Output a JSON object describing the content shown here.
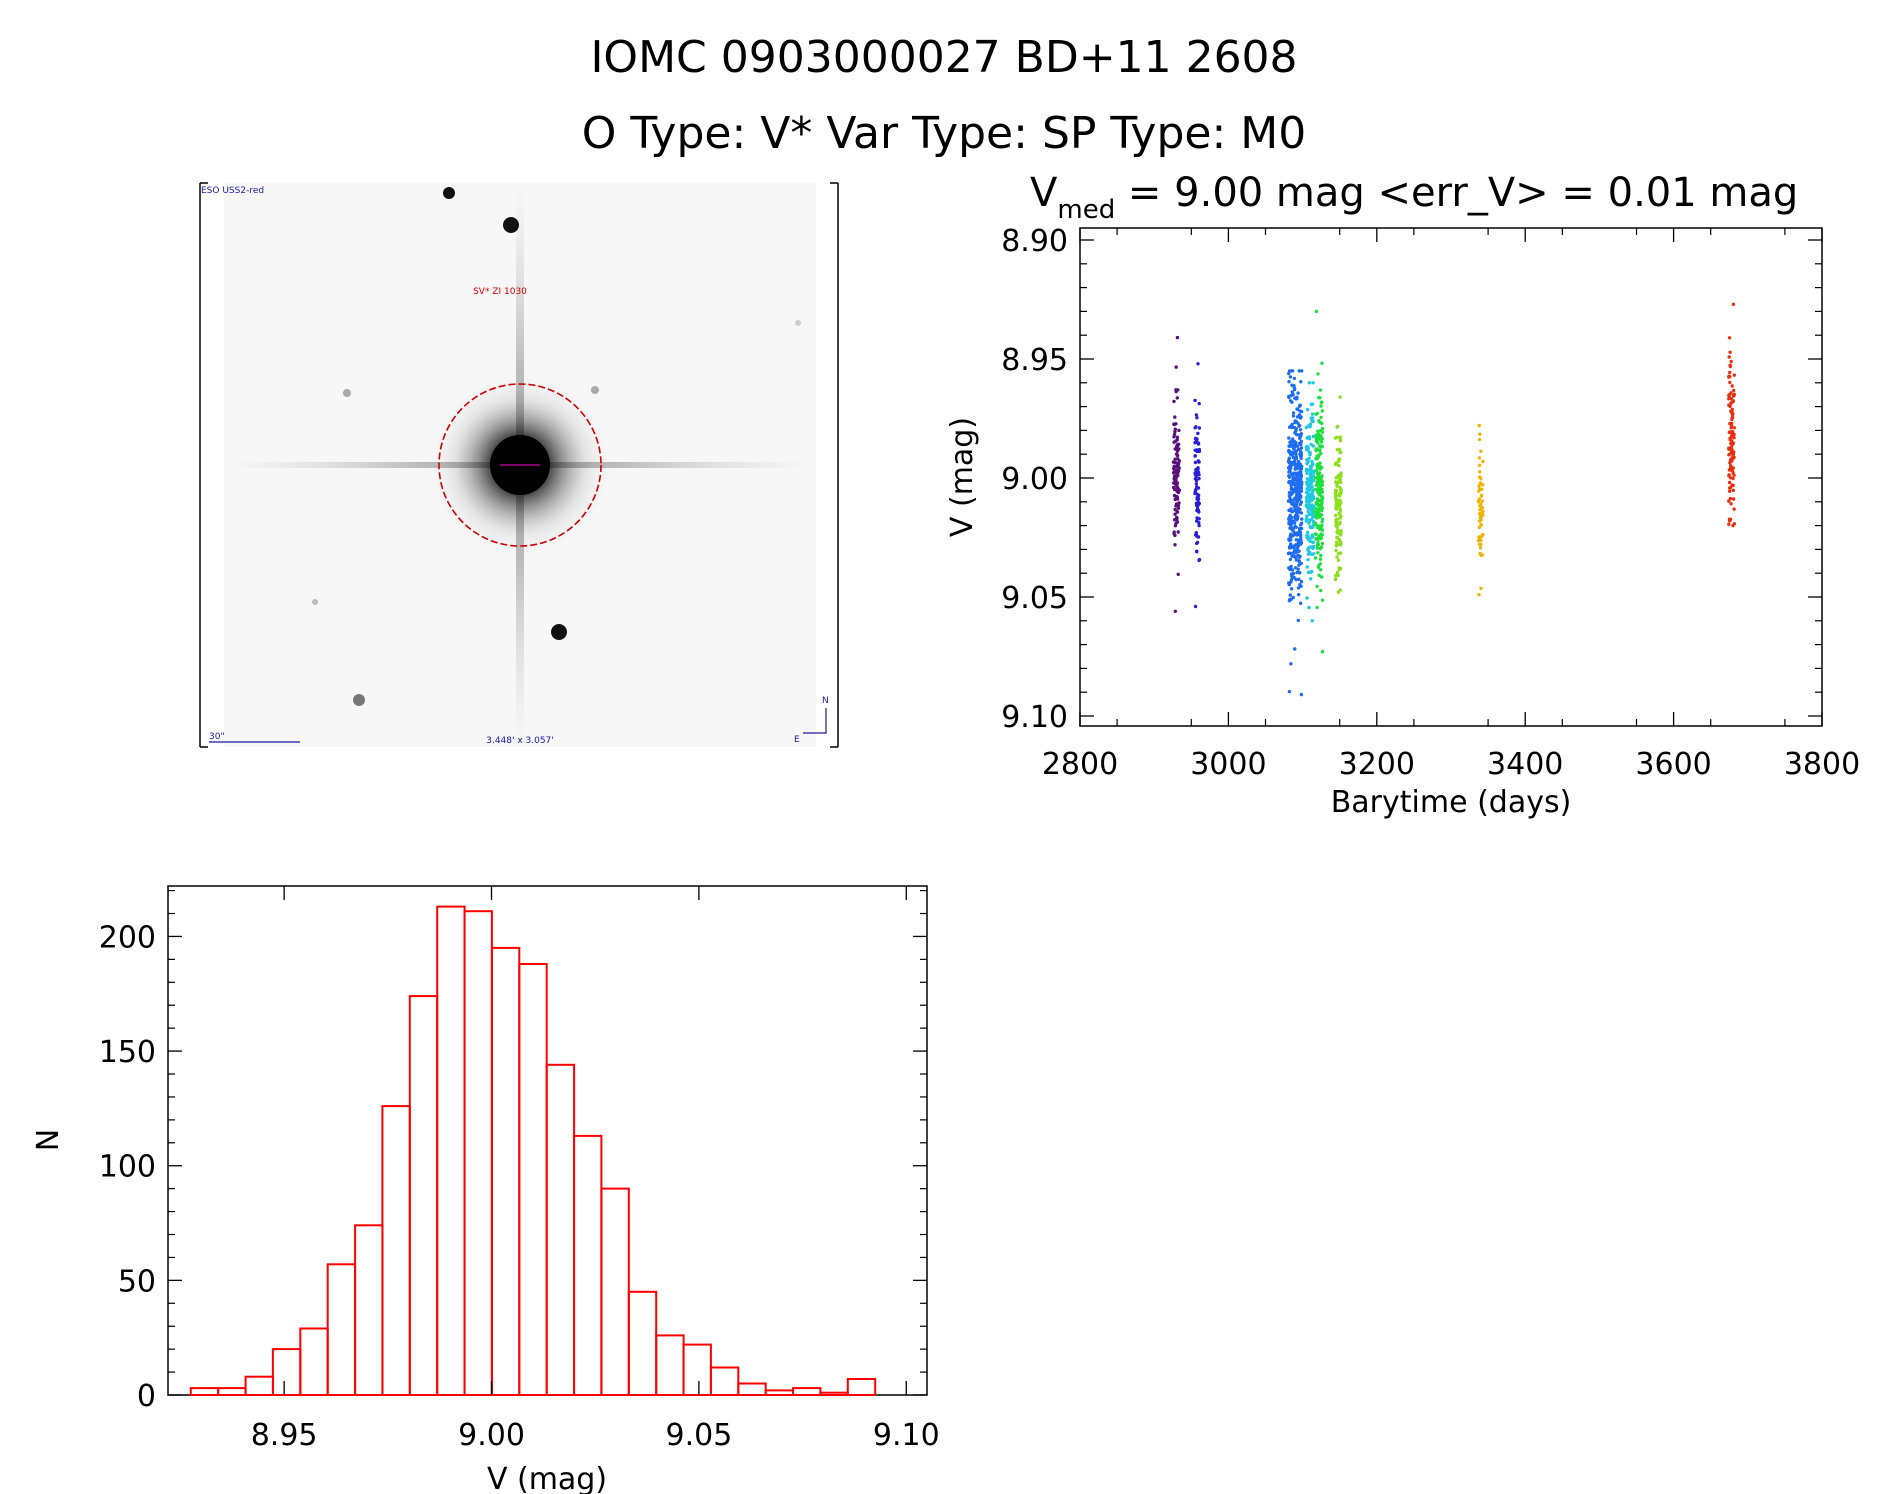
{
  "header": {
    "line1": "IOMC 0903000027    BD+11  2608",
    "line2": "O Type: V*  Var Type:    SP Type: M0"
  },
  "sky_image": {
    "survey_label": "ESO USS2-red",
    "target_label": "SV* ZI 1030",
    "scale_label": "30\"",
    "fov_label": "3.448' x 3.057'",
    "north_label": "N",
    "east_label": "E",
    "label_color": "#1a1aa0",
    "target_color": "#cc0000"
  },
  "chart_data": [
    {
      "type": "scatter",
      "title_prefix": "V",
      "title_subscript": "med",
      "title_rest": " = 9.00 mag <err_V> = 0.01 mag",
      "xlabel": "Barytime (days)",
      "ylabel": "V (mag)",
      "xlim": [
        2800,
        3800
      ],
      "ylim": [
        9.1,
        8.9
      ],
      "xticks": [
        "2800",
        "3000",
        "3200",
        "3400",
        "3600",
        "3800"
      ],
      "yticks": [
        "8.90",
        "8.95",
        "9.00",
        "9.05",
        "9.10"
      ],
      "clusters": [
        {
          "x": 2930,
          "xspread": 4,
          "ymin": 8.941,
          "ymax": 9.056,
          "center": 8.998,
          "sd": 0.017,
          "n": 110,
          "color": "#5a0f7a"
        },
        {
          "x": 2958,
          "xspread": 3,
          "ymin": 8.952,
          "ymax": 9.054,
          "center": 9.002,
          "sd": 0.015,
          "n": 90,
          "color": "#2a1fd8"
        },
        {
          "x": 3090,
          "xspread": 9,
          "ymin": 8.955,
          "ymax": 9.091,
          "center": 9.006,
          "sd": 0.022,
          "n": 420,
          "color": "#1e6cf0"
        },
        {
          "x": 3110,
          "xspread": 5,
          "ymin": 8.96,
          "ymax": 9.06,
          "center": 9.007,
          "sd": 0.017,
          "n": 180,
          "color": "#1ec8e0"
        },
        {
          "x": 3122,
          "xspread": 5,
          "ymin": 8.93,
          "ymax": 9.073,
          "center": 9.006,
          "sd": 0.019,
          "n": 200,
          "color": "#1ee03c"
        },
        {
          "x": 3148,
          "xspread": 4,
          "ymin": 8.966,
          "ymax": 9.048,
          "center": 9.012,
          "sd": 0.015,
          "n": 130,
          "color": "#8ee01e"
        },
        {
          "x": 3340,
          "xspread": 3,
          "ymin": 8.978,
          "ymax": 9.049,
          "center": 9.013,
          "sd": 0.014,
          "n": 60,
          "color": "#f0b400"
        },
        {
          "x": 3678,
          "xspread": 4,
          "ymin": 8.927,
          "ymax": 9.02,
          "center": 8.983,
          "sd": 0.016,
          "n": 120,
          "color": "#e83010"
        }
      ]
    },
    {
      "type": "bar",
      "subtype": "histogram",
      "xlabel": "V (mag)",
      "ylabel": "N",
      "xlim": [
        8.922,
        9.105
      ],
      "ylim": [
        0,
        222
      ],
      "xticks": [
        "8.95",
        "9.00",
        "9.05",
        "9.10"
      ],
      "yticks": [
        "0",
        "50",
        "100",
        "150",
        "200"
      ],
      "bin_start": 8.9275,
      "bin_width": 0.0066,
      "values": [
        3,
        3,
        8,
        20,
        29,
        57,
        74,
        126,
        174,
        213,
        211,
        195,
        188,
        144,
        113,
        90,
        45,
        26,
        22,
        12,
        5,
        2,
        3,
        1,
        7
      ],
      "color": "#ff0000"
    }
  ]
}
